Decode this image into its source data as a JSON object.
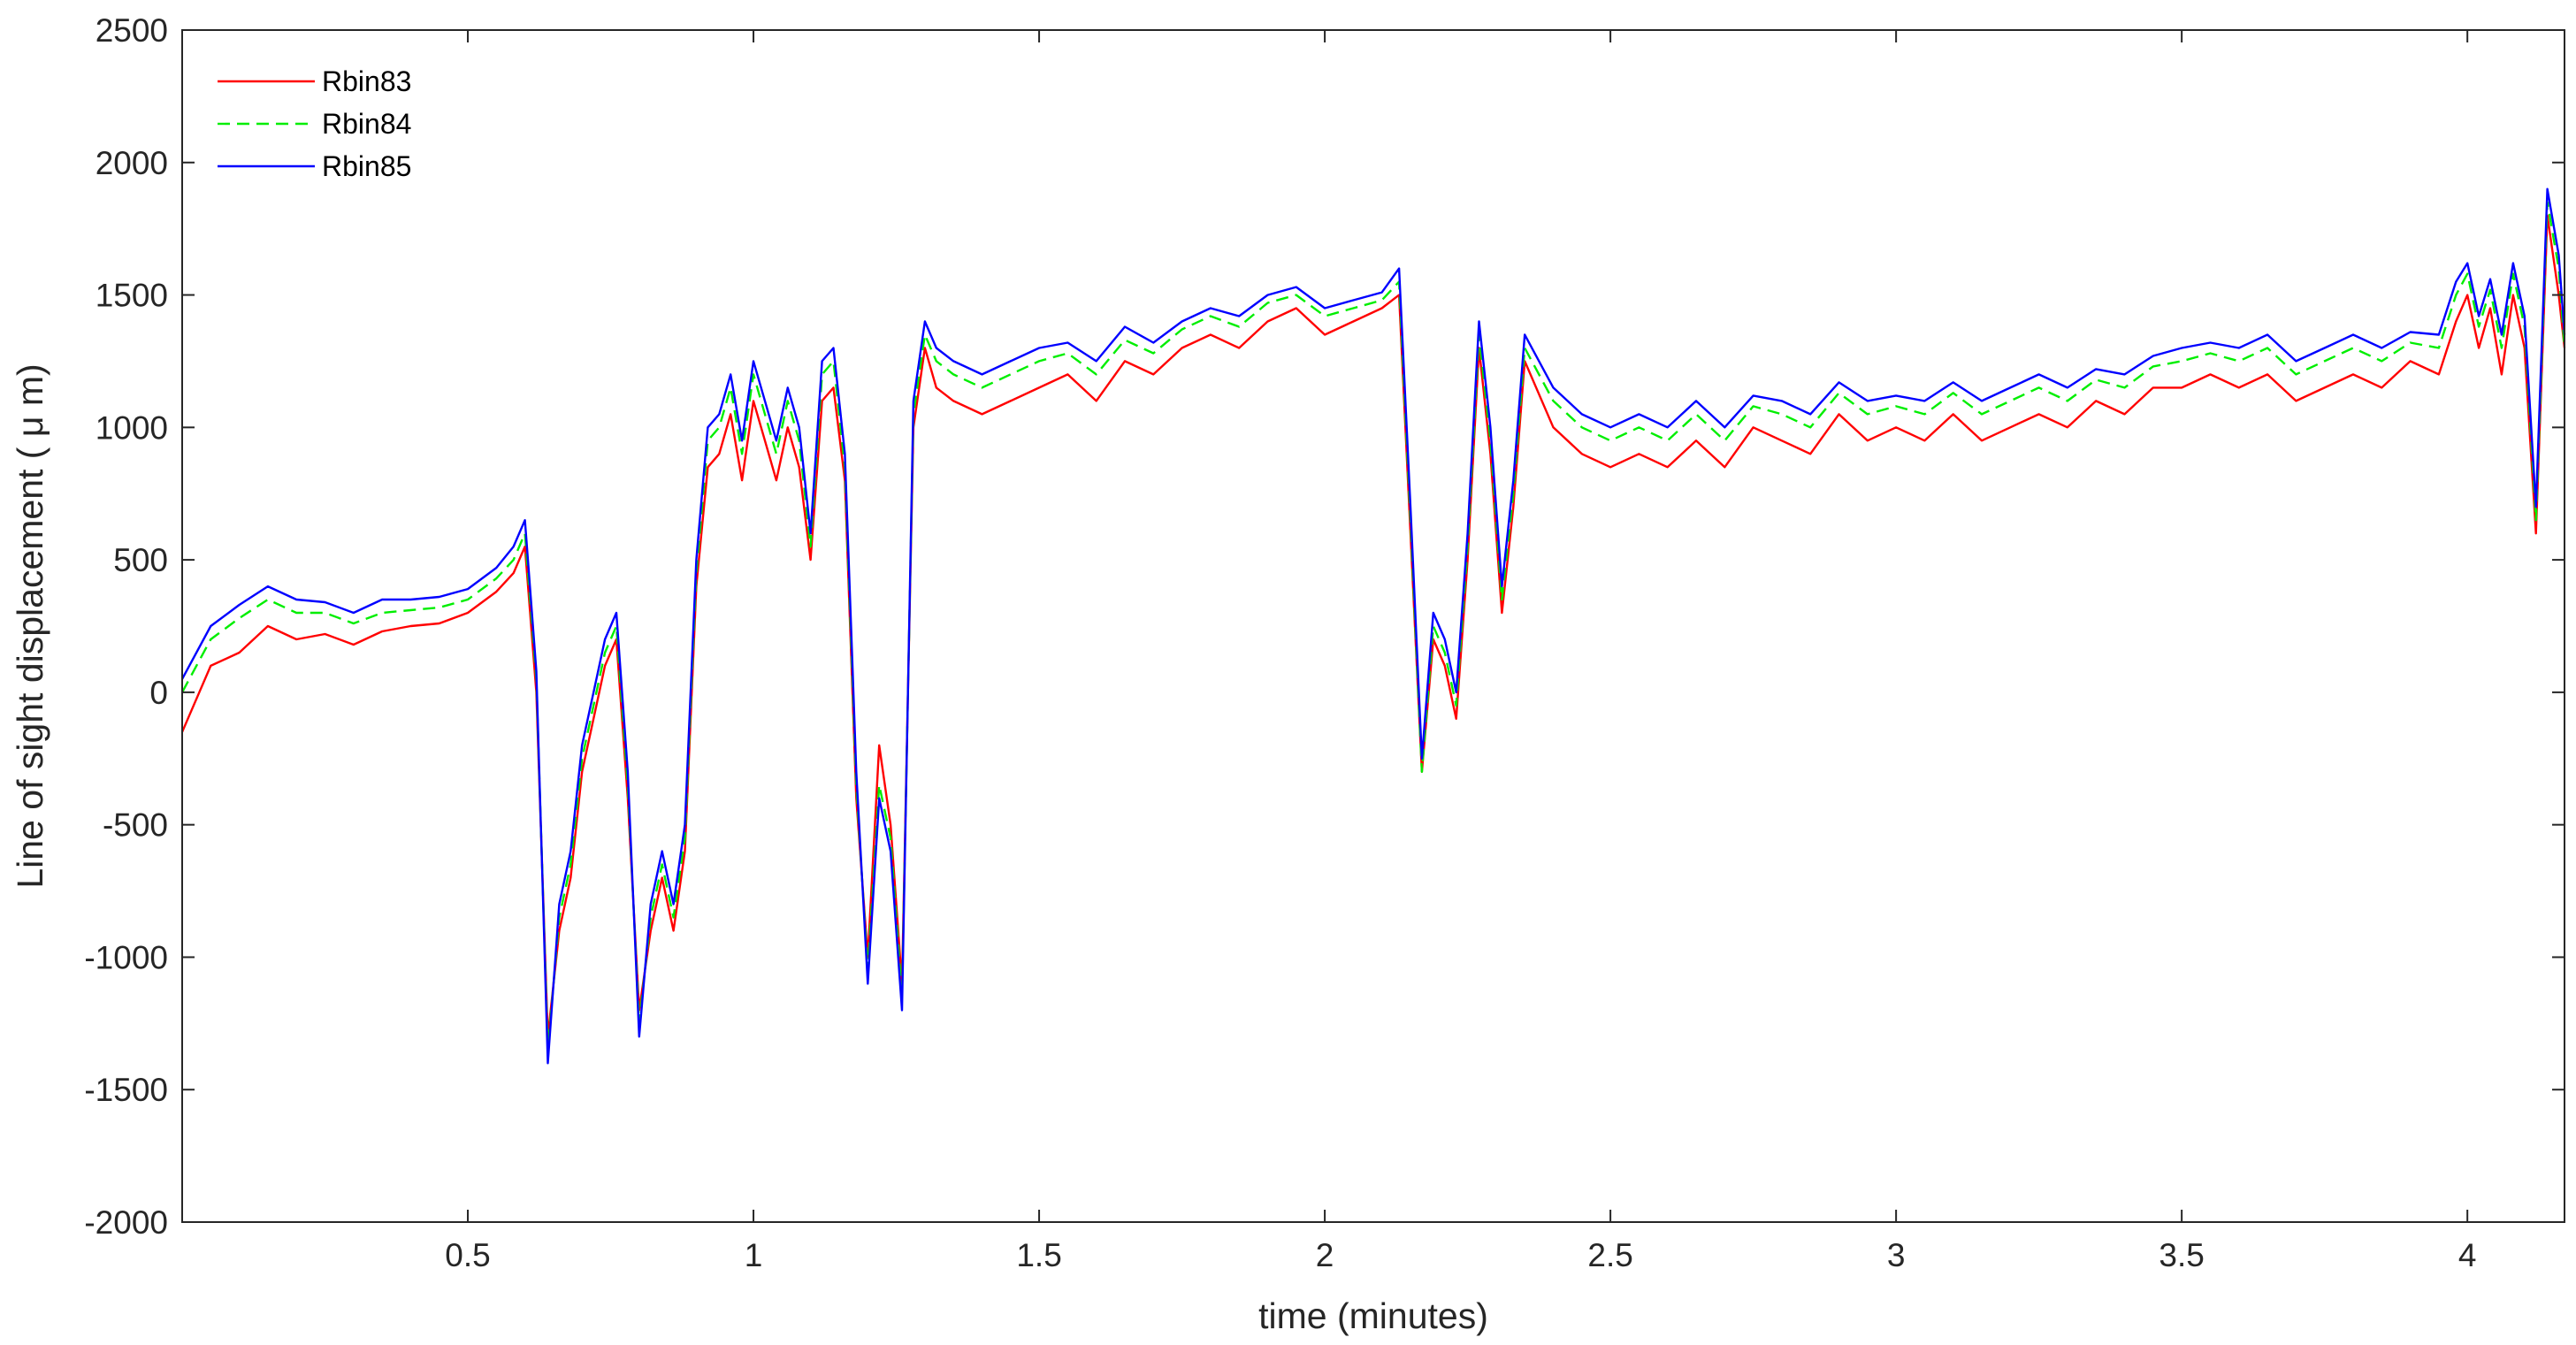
{
  "chart_data": {
    "type": "line",
    "xlabel": "time (minutes)",
    "ylabel": "Line of sight displacement ( μ m)",
    "xlim": [
      0,
      4.17
    ],
    "ylim": [
      -2000,
      2500
    ],
    "xticks": [
      "0.5",
      "1",
      "1.5",
      "2",
      "2.5",
      "3",
      "3.5",
      "4"
    ],
    "yticks": [
      "-2000",
      "-1500",
      "-1000",
      "-500",
      "0",
      "500",
      "1000",
      "1500",
      "2000",
      "2500"
    ],
    "grid": false,
    "legend_position": "top-left",
    "x": [
      0.0,
      0.05,
      0.1,
      0.15,
      0.2,
      0.25,
      0.3,
      0.35,
      0.4,
      0.45,
      0.5,
      0.55,
      0.58,
      0.6,
      0.62,
      0.64,
      0.66,
      0.68,
      0.7,
      0.72,
      0.74,
      0.76,
      0.78,
      0.8,
      0.82,
      0.84,
      0.86,
      0.88,
      0.9,
      0.92,
      0.94,
      0.96,
      0.98,
      1.0,
      1.02,
      1.04,
      1.06,
      1.08,
      1.1,
      1.12,
      1.14,
      1.16,
      1.18,
      1.2,
      1.22,
      1.24,
      1.26,
      1.28,
      1.3,
      1.32,
      1.35,
      1.4,
      1.45,
      1.5,
      1.55,
      1.6,
      1.65,
      1.7,
      1.75,
      1.8,
      1.85,
      1.9,
      1.95,
      2.0,
      2.05,
      2.1,
      2.13,
      2.15,
      2.17,
      2.19,
      2.21,
      2.23,
      2.25,
      2.27,
      2.29,
      2.31,
      2.33,
      2.35,
      2.4,
      2.45,
      2.5,
      2.55,
      2.6,
      2.65,
      2.7,
      2.75,
      2.8,
      2.85,
      2.9,
      2.95,
      3.0,
      3.05,
      3.1,
      3.15,
      3.2,
      3.25,
      3.3,
      3.35,
      3.4,
      3.45,
      3.5,
      3.55,
      3.6,
      3.65,
      3.7,
      3.75,
      3.8,
      3.85,
      3.9,
      3.95,
      3.98,
      4.0,
      4.02,
      4.04,
      4.06,
      4.08,
      4.1,
      4.12,
      4.14,
      4.16,
      4.17
    ],
    "series": [
      {
        "name": "Rbin83",
        "color": "#ff0000",
        "dash": "solid",
        "values": [
          -150,
          100,
          150,
          250,
          200,
          220,
          180,
          230,
          250,
          260,
          300,
          380,
          450,
          550,
          0,
          -1300,
          -900,
          -700,
          -300,
          -100,
          100,
          200,
          -400,
          -1200,
          -900,
          -700,
          -900,
          -600,
          400,
          850,
          900,
          1050,
          800,
          1100,
          950,
          800,
          1000,
          850,
          500,
          1100,
          1150,
          800,
          -400,
          -1000,
          -200,
          -500,
          -1100,
          1000,
          1300,
          1150,
          1100,
          1050,
          1100,
          1150,
          1200,
          1100,
          1250,
          1200,
          1300,
          1350,
          1300,
          1400,
          1450,
          1350,
          1400,
          1450,
          1500,
          600,
          -300,
          200,
          100,
          -100,
          500,
          1300,
          900,
          300,
          700,
          1250,
          1000,
          900,
          850,
          900,
          850,
          950,
          850,
          1000,
          950,
          900,
          1050,
          950,
          1000,
          950,
          1050,
          950,
          1000,
          1050,
          1000,
          1100,
          1050,
          1150,
          1150,
          1200,
          1150,
          1200,
          1100,
          1150,
          1200,
          1150,
          1250,
          1200,
          1400,
          1500,
          1300,
          1450,
          1200,
          1500,
          1300,
          600,
          1800,
          1500,
          1300
        ]
      },
      {
        "name": "Rbin84",
        "color": "#00ee00",
        "dash": "dashed",
        "values": [
          0,
          200,
          280,
          350,
          300,
          300,
          260,
          300,
          310,
          320,
          350,
          430,
          500,
          600,
          50,
          -1350,
          -850,
          -650,
          -250,
          -50,
          150,
          250,
          -350,
          -1250,
          -850,
          -650,
          -850,
          -550,
          450,
          950,
          1000,
          1150,
          900,
          1200,
          1050,
          900,
          1100,
          950,
          550,
          1200,
          1250,
          850,
          -350,
          -1050,
          -350,
          -550,
          -1150,
          1050,
          1350,
          1250,
          1200,
          1150,
          1200,
          1250,
          1280,
          1200,
          1330,
          1280,
          1370,
          1420,
          1380,
          1470,
          1500,
          1420,
          1450,
          1480,
          1550,
          650,
          -300,
          250,
          150,
          -50,
          550,
          1350,
          950,
          350,
          750,
          1300,
          1100,
          1000,
          950,
          1000,
          950,
          1050,
          950,
          1080,
          1050,
          1000,
          1130,
          1050,
          1080,
          1050,
          1130,
          1050,
          1100,
          1150,
          1100,
          1180,
          1150,
          1230,
          1250,
          1280,
          1250,
          1300,
          1200,
          1250,
          1300,
          1250,
          1320,
          1300,
          1500,
          1580,
          1380,
          1520,
          1300,
          1580,
          1380,
          650,
          1850,
          1600,
          1300
        ]
      },
      {
        "name": "Rbin85",
        "color": "#0000ff",
        "dash": "solid",
        "values": [
          50,
          250,
          330,
          400,
          350,
          340,
          300,
          350,
          350,
          360,
          390,
          470,
          550,
          650,
          80,
          -1400,
          -800,
          -600,
          -200,
          0,
          200,
          300,
          -300,
          -1300,
          -800,
          -600,
          -800,
          -500,
          500,
          1000,
          1050,
          1200,
          950,
          1250,
          1100,
          950,
          1150,
          1000,
          600,
          1250,
          1300,
          900,
          -300,
          -1100,
          -400,
          -600,
          -1200,
          1100,
          1400,
          1300,
          1250,
          1200,
          1250,
          1300,
          1320,
          1250,
          1380,
          1320,
          1400,
          1450,
          1420,
          1500,
          1530,
          1450,
          1480,
          1510,
          1600,
          700,
          -250,
          300,
          200,
          0,
          600,
          1400,
          1000,
          400,
          800,
          1350,
          1150,
          1050,
          1000,
          1050,
          1000,
          1100,
          1000,
          1120,
          1100,
          1050,
          1170,
          1100,
          1120,
          1100,
          1170,
          1100,
          1150,
          1200,
          1150,
          1220,
          1200,
          1270,
          1300,
          1320,
          1300,
          1350,
          1250,
          1300,
          1350,
          1300,
          1360,
          1350,
          1550,
          1620,
          1420,
          1560,
          1350,
          1620,
          1420,
          700,
          1900,
          1650,
          1350
        ]
      }
    ]
  }
}
